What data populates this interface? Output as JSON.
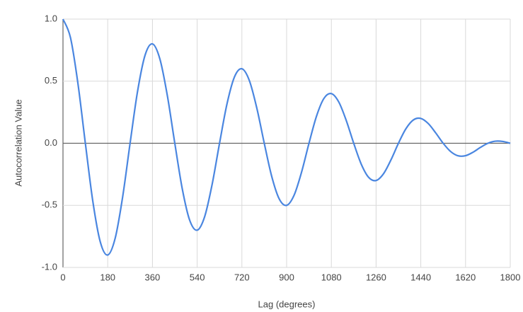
{
  "chart_data": {
    "type": "line",
    "x_label": "Lag (degrees)",
    "y_label": "Autocorrelation Value",
    "x": [
      0,
      30,
      60,
      90,
      120,
      150,
      180,
      210,
      240,
      270,
      300,
      330,
      360,
      390,
      420,
      450,
      480,
      510,
      540,
      570,
      600,
      630,
      660,
      690,
      720,
      750,
      780,
      810,
      840,
      870,
      900,
      930,
      960,
      990,
      1020,
      1050,
      1080,
      1110,
      1140,
      1170,
      1200,
      1230,
      1260,
      1290,
      1320,
      1350,
      1380,
      1410,
      1440,
      1470,
      1500,
      1530,
      1560,
      1590,
      1620,
      1650,
      1680,
      1710,
      1740,
      1770,
      1800
    ],
    "series": [
      {
        "name": "Autocorrelation",
        "color": "#4a86e0",
        "values": [
          1,
          0.8516,
          0.4833,
          0,
          -0.4667,
          -0.7939,
          -0.9,
          -0.765,
          -0.4333,
          0,
          0.4167,
          0.7073,
          0.8,
          0.6784,
          0.3833,
          0,
          -0.3667,
          -0.6207,
          -0.7,
          -0.5918,
          -0.3333,
          0,
          0.3167,
          0.5341,
          0.6,
          0.5052,
          0.2833,
          0,
          -0.2667,
          -0.4474,
          -0.5,
          -0.4186,
          -0.2333,
          0,
          0.2167,
          0.3608,
          0.4,
          0.332,
          0.1833,
          0,
          -0.1667,
          -0.2742,
          -0.3,
          -0.2454,
          -0.1333,
          0,
          0.1167,
          0.1876,
          0.2,
          0.1588,
          0.0833,
          0,
          -0.0667,
          -0.101,
          -0.1,
          -0.0722,
          -0.0333,
          0,
          0.0167,
          0.0144,
          0
        ]
      }
    ],
    "xlim": [
      0,
      1800
    ],
    "xticks": [
      0,
      180,
      360,
      540,
      720,
      900,
      1080,
      1260,
      1440,
      1620,
      1800
    ],
    "ylim": [
      -1,
      1
    ],
    "yticks": [
      {
        "value": 1,
        "label": "1.0"
      },
      {
        "value": 0.5,
        "label": "0.5"
      },
      {
        "value": 0,
        "label": "0.0"
      },
      {
        "value": -0.5,
        "label": "-0.5"
      },
      {
        "value": -1,
        "label": "-1.0"
      }
    ],
    "grid": true
  }
}
